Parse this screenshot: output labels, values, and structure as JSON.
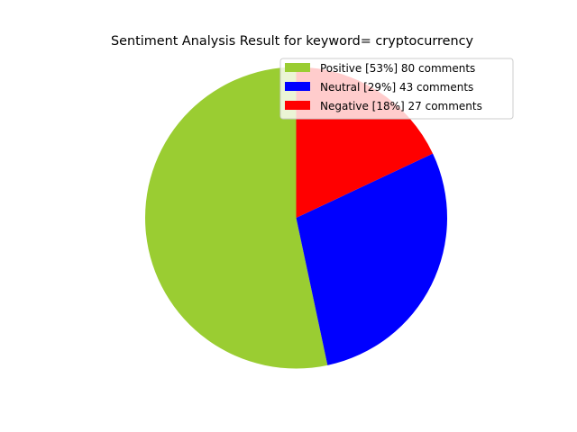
{
  "chart_data": {
    "type": "pie",
    "title": "Sentiment Analysis Result for keyword= cryptocurrency",
    "slices": [
      {
        "label": "Positive [53%] 80 comments",
        "value": 80,
        "percent": 53,
        "color": "#9acd32"
      },
      {
        "label": "Neutral [29%] 43 comments",
        "value": 43,
        "percent": 29,
        "color": "#0000ff"
      },
      {
        "label": "Negative [18%] 27 comments",
        "value": 27,
        "percent": 18,
        "color": "#ff0000"
      }
    ],
    "start_angle_deg": 90,
    "direction": "counterclockwise",
    "legend_position": "upper right"
  }
}
